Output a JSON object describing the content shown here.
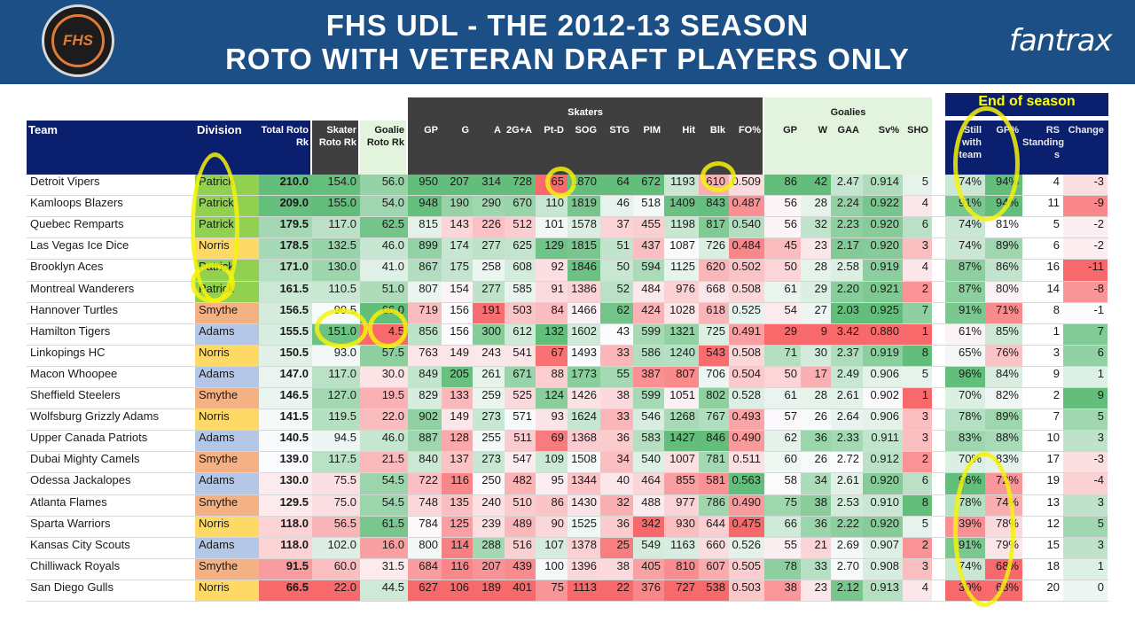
{
  "header": {
    "title_line1": "FHS UDL - THE 2012-13 SEASON",
    "title_line2": "ROTO WITH VETERAN DRAFT PLAYERS ONLY",
    "logo_text": "FHS",
    "brand": "fantrax"
  },
  "group_labels": {
    "skaters": "Skaters",
    "goalies": "Goalies",
    "end_of_season": "End of season"
  },
  "columns": [
    "Team",
    "Division",
    "Total Roto Rk",
    "Skater Roto Rk",
    "Goalie Roto Rk",
    "GP",
    "G",
    "A",
    "2G+A",
    "Pt-D",
    "SOG",
    "STG",
    "PIM",
    "Hit",
    "Blk",
    "FO%",
    "GP",
    "W",
    "GAA",
    "Sv%",
    "SHO",
    "Still with team",
    "GP%",
    "RS Standing s",
    "Change"
  ],
  "rows": [
    [
      "Detroit Vipers",
      "Patrick",
      "210.0",
      "154.0",
      "56.0",
      "950",
      "207",
      "314",
      "728",
      "65",
      "1870",
      "64",
      "672",
      "1193",
      "610",
      "0.509",
      "86",
      "42",
      "2.47",
      "0.914",
      "5",
      "74%",
      "94%",
      "4",
      "-3"
    ],
    [
      "Kamloops Blazers",
      "Patrick",
      "209.0",
      "155.0",
      "54.0",
      "948",
      "190",
      "290",
      "670",
      "110",
      "1819",
      "46",
      "518",
      "1409",
      "843",
      "0.487",
      "56",
      "28",
      "2.24",
      "0.922",
      "4",
      "91%",
      "94%",
      "11",
      "-9"
    ],
    [
      "Quebec Remparts",
      "Patrick",
      "179.5",
      "117.0",
      "62.5",
      "815",
      "143",
      "226",
      "512",
      "101",
      "1578",
      "37",
      "455",
      "1198",
      "817",
      "0.540",
      "56",
      "32",
      "2.23",
      "0.920",
      "6",
      "74%",
      "81%",
      "5",
      "-2"
    ],
    [
      "Las Vegas Ice Dice",
      "Norris",
      "178.5",
      "132.5",
      "46.0",
      "899",
      "174",
      "277",
      "625",
      "129",
      "1815",
      "51",
      "437",
      "1087",
      "726",
      "0.484",
      "45",
      "23",
      "2.17",
      "0.920",
      "3",
      "74%",
      "89%",
      "6",
      "-2"
    ],
    [
      "Brooklyn Aces",
      "Patrick",
      "171.0",
      "130.0",
      "41.0",
      "867",
      "175",
      "258",
      "608",
      "92",
      "1846",
      "50",
      "594",
      "1125",
      "620",
      "0.502",
      "50",
      "28",
      "2.58",
      "0.919",
      "4",
      "87%",
      "86%",
      "16",
      "-11"
    ],
    [
      "Montreal Wanderers",
      "Patrick",
      "161.5",
      "110.5",
      "51.0",
      "807",
      "154",
      "277",
      "585",
      "91",
      "1386",
      "52",
      "484",
      "976",
      "668",
      "0.508",
      "61",
      "29",
      "2.20",
      "0.921",
      "2",
      "87%",
      "80%",
      "14",
      "-8"
    ],
    [
      "Hannover Turtles",
      "Smythe",
      "156.5",
      "90.5",
      "66.0",
      "719",
      "156",
      "191",
      "503",
      "84",
      "1466",
      "62",
      "424",
      "1028",
      "618",
      "0.525",
      "54",
      "27",
      "2.03",
      "0.925",
      "7",
      "91%",
      "71%",
      "8",
      "-1"
    ],
    [
      "Hamilton Tigers",
      "Adams",
      "155.5",
      "151.0",
      "4.5",
      "856",
      "156",
      "300",
      "612",
      "132",
      "1602",
      "43",
      "599",
      "1321",
      "725",
      "0.491",
      "29",
      "9",
      "3.42",
      "0.880",
      "1",
      "61%",
      "85%",
      "1",
      "7"
    ],
    [
      "Linkopings HC",
      "Norris",
      "150.5",
      "93.0",
      "57.5",
      "763",
      "149",
      "243",
      "541",
      "67",
      "1493",
      "33",
      "586",
      "1240",
      "543",
      "0.508",
      "71",
      "30",
      "2.37",
      "0.919",
      "8",
      "65%",
      "76%",
      "3",
      "6"
    ],
    [
      "Macon Whoopee",
      "Adams",
      "147.0",
      "117.0",
      "30.0",
      "849",
      "205",
      "261",
      "671",
      "88",
      "1773",
      "55",
      "387",
      "807",
      "706",
      "0.504",
      "50",
      "17",
      "2.49",
      "0.906",
      "5",
      "96%",
      "84%",
      "9",
      "1"
    ],
    [
      "Sheffield Steelers",
      "Smythe",
      "146.5",
      "127.0",
      "19.5",
      "829",
      "133",
      "259",
      "525",
      "124",
      "1426",
      "38",
      "599",
      "1051",
      "802",
      "0.528",
      "61",
      "28",
      "2.61",
      "0.902",
      "1",
      "70%",
      "82%",
      "2",
      "9"
    ],
    [
      "Wolfsburg Grizzly Adams",
      "Norris",
      "141.5",
      "119.5",
      "22.0",
      "902",
      "149",
      "273",
      "571",
      "93",
      "1624",
      "33",
      "546",
      "1268",
      "767",
      "0.493",
      "57",
      "26",
      "2.64",
      "0.906",
      "3",
      "78%",
      "89%",
      "7",
      "5"
    ],
    [
      "Upper Canada Patriots",
      "Adams",
      "140.5",
      "94.5",
      "46.0",
      "887",
      "128",
      "255",
      "511",
      "69",
      "1368",
      "36",
      "583",
      "1427",
      "846",
      "0.490",
      "62",
      "36",
      "2.33",
      "0.911",
      "3",
      "83%",
      "88%",
      "10",
      "3"
    ],
    [
      "Dubai Mighty Camels",
      "Smythe",
      "139.0",
      "117.5",
      "21.5",
      "840",
      "137",
      "273",
      "547",
      "109",
      "1508",
      "34",
      "540",
      "1007",
      "781",
      "0.511",
      "60",
      "26",
      "2.72",
      "0.912",
      "2",
      "70%",
      "83%",
      "17",
      "-3"
    ],
    [
      "Odessa Jackalopes",
      "Adams",
      "130.0",
      "75.5",
      "54.5",
      "722",
      "116",
      "250",
      "482",
      "95",
      "1344",
      "40",
      "464",
      "855",
      "581",
      "0.563",
      "58",
      "34",
      "2.61",
      "0.920",
      "6",
      "96%",
      "72%",
      "19",
      "-4"
    ],
    [
      "Atlanta Flames",
      "Smythe",
      "129.5",
      "75.0",
      "54.5",
      "748",
      "135",
      "240",
      "510",
      "86",
      "1430",
      "32",
      "488",
      "977",
      "786",
      "0.490",
      "75",
      "38",
      "2.53",
      "0.910",
      "8",
      "78%",
      "74%",
      "13",
      "3"
    ],
    [
      "Sparta Warriors",
      "Norris",
      "118.0",
      "56.5",
      "61.5",
      "784",
      "125",
      "239",
      "489",
      "90",
      "1525",
      "36",
      "342",
      "930",
      "644",
      "0.475",
      "66",
      "36",
      "2.22",
      "0.920",
      "5",
      "39%",
      "78%",
      "12",
      "5"
    ],
    [
      "Kansas City Scouts",
      "Adams",
      "118.0",
      "102.0",
      "16.0",
      "800",
      "114",
      "288",
      "516",
      "107",
      "1378",
      "25",
      "549",
      "1163",
      "660",
      "0.526",
      "55",
      "21",
      "2.69",
      "0.907",
      "2",
      "91%",
      "79%",
      "15",
      "3"
    ],
    [
      "Chilliwack Royals",
      "Smythe",
      "91.5",
      "60.0",
      "31.5",
      "684",
      "116",
      "207",
      "439",
      "100",
      "1396",
      "38",
      "405",
      "810",
      "607",
      "0.505",
      "78",
      "33",
      "2.70",
      "0.908",
      "3",
      "74%",
      "68%",
      "18",
      "1"
    ],
    [
      "San Diego Gulls",
      "Norris",
      "66.5",
      "22.0",
      "44.5",
      "627",
      "106",
      "189",
      "401",
      "75",
      "1113",
      "22",
      "376",
      "727",
      "538",
      "0.503",
      "38",
      "23",
      "2.12",
      "0.913",
      "4",
      "30%",
      "68%",
      "20",
      "0"
    ]
  ],
  "colors": {
    "banner": "#1b4f86",
    "header_navy": "#0a1f6e",
    "skater_dark": "#3f3f3f",
    "goalie_light": "#e2f4de",
    "eos_title_text": "#ffff00",
    "good": "#63be7b",
    "bad": "#f8696b",
    "neutral": "#fcfcff",
    "patrick": "#92d050",
    "norris": "#ffd966",
    "smythe": "#f4b183",
    "adams": "#b4c7e7",
    "highlight": "#f6f20a"
  }
}
